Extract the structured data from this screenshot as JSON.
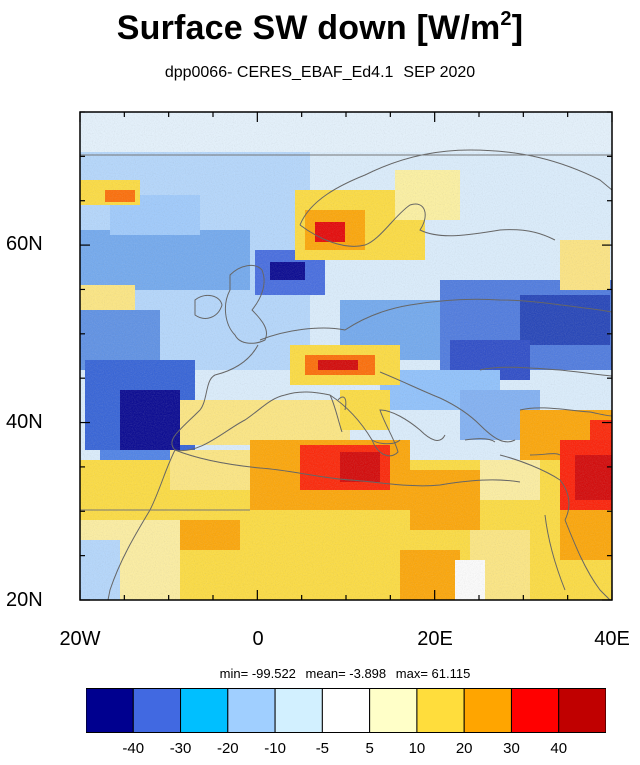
{
  "title": "Surface SW down [W/m",
  "title_sup": "2",
  "title_end": "]",
  "subtitle": {
    "experiment": "dpp0066-",
    "dataset": "CERES_EBAF_Ed4.1",
    "period": "SEP 2020"
  },
  "map": {
    "projection": "cylindrical-equidistant",
    "lon_range": [
      -20,
      40
    ],
    "lat_range": [
      20,
      75
    ],
    "y_ticks": [
      "60N",
      "40N",
      "20N"
    ],
    "x_ticks": [
      "20W",
      "0",
      "20E",
      "40E"
    ]
  },
  "stats": {
    "min": "min= -99.522",
    "mean": "mean=  -3.898",
    "max": "max=  61.115"
  },
  "colorbar": {
    "colors": [
      "#00008f",
      "#4169e1",
      "#00bfff",
      "#a0cfff",
      "#d2f0ff",
      "#ffffff",
      "#ffffc8",
      "#ffdd3c",
      "#ffa500",
      "#ff0000",
      "#c00000"
    ],
    "labels": [
      "-40",
      "-30",
      "-20",
      "-10",
      "-5",
      "5",
      "10",
      "20",
      "30",
      "40"
    ]
  }
}
